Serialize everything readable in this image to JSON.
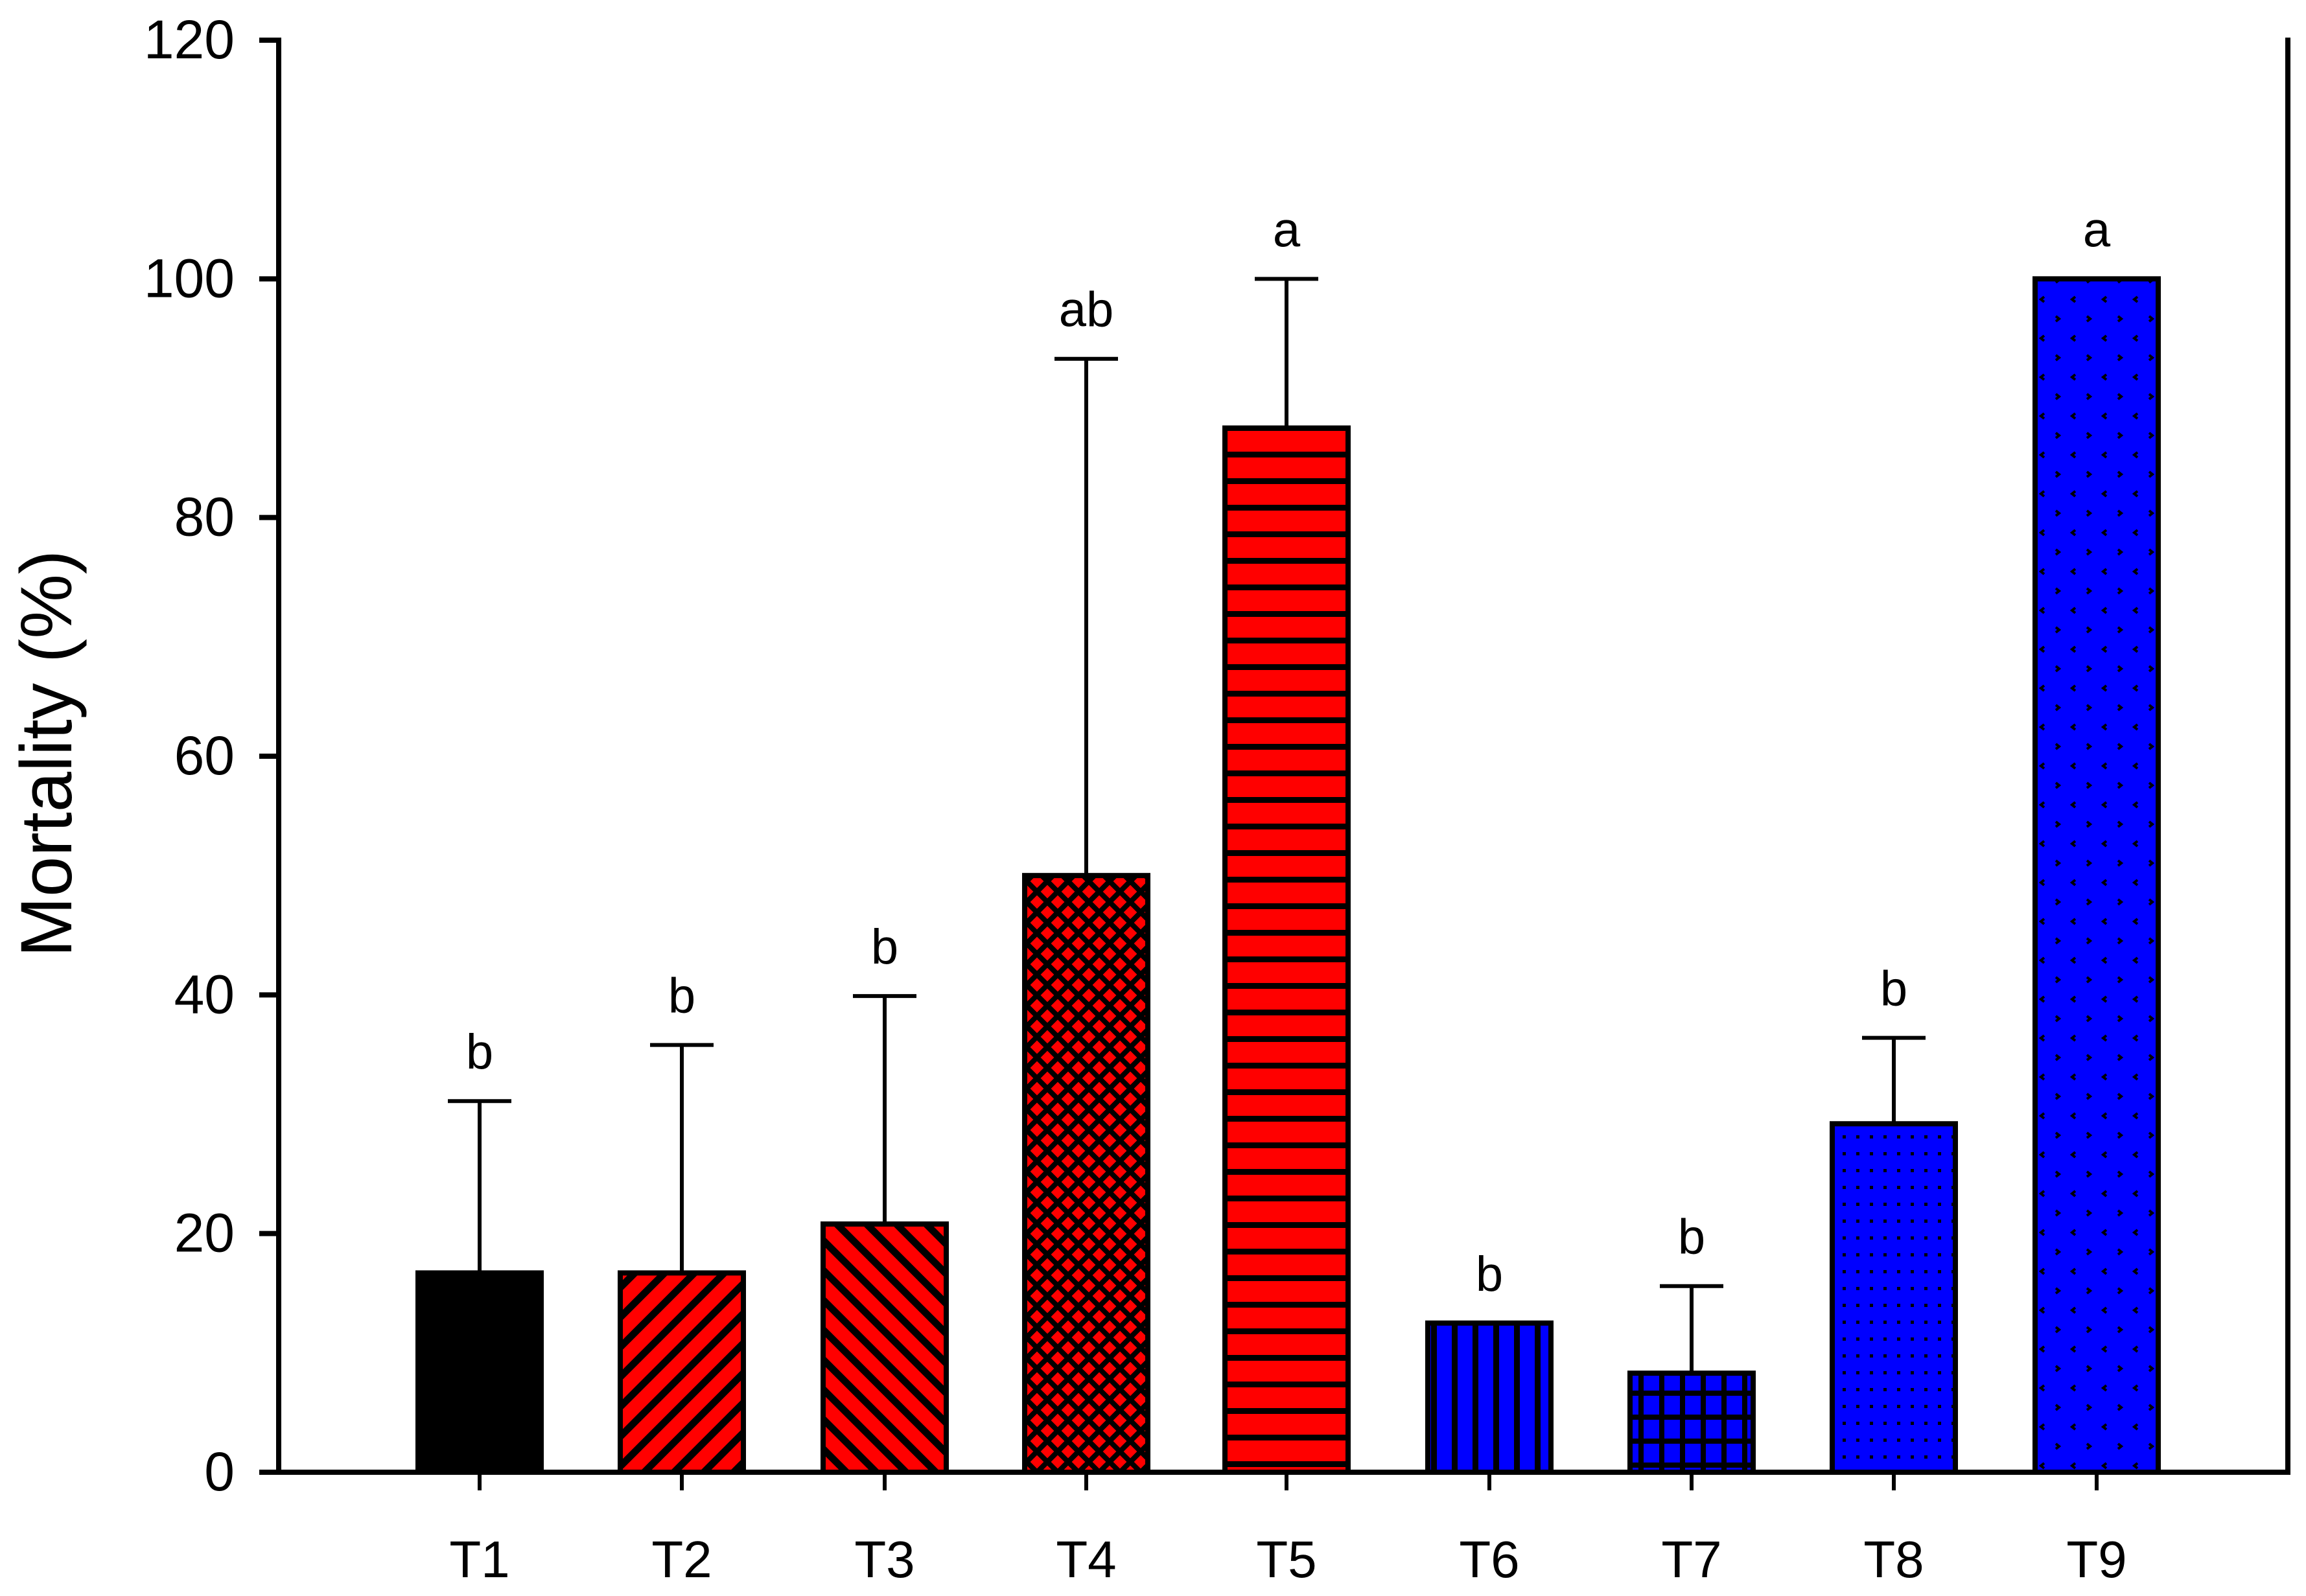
{
  "chart_data": {
    "type": "bar",
    "title": "",
    "xlabel": "",
    "ylabel": "Mortality (%)",
    "ylim": [
      0,
      120
    ],
    "yticks": [
      0,
      20,
      40,
      60,
      80,
      100,
      120
    ],
    "grid": false,
    "legend": null,
    "categories": [
      "T1",
      "T2",
      "T3",
      "T4",
      "T5",
      "T6",
      "T7",
      "T8",
      "T9"
    ],
    "values": [
      16.7,
      16.7,
      20.8,
      50.0,
      87.5,
      12.5,
      8.3,
      29.2,
      100.0
    ],
    "error_upper": [
      31.1,
      35.8,
      39.9,
      93.3,
      100.0,
      null,
      15.6,
      36.4,
      null
    ],
    "significance_letters": [
      "b",
      "b",
      "b",
      "ab",
      "a",
      "b",
      "b",
      "b",
      "a"
    ],
    "bar_styles": [
      {
        "fill": "#000000",
        "pattern": "solid"
      },
      {
        "fill": "#ff0000",
        "pattern": "diagonal-forward"
      },
      {
        "fill": "#ff0000",
        "pattern": "diagonal-backward"
      },
      {
        "fill": "#ff0000",
        "pattern": "crosshatch-diagonal"
      },
      {
        "fill": "#ff0000",
        "pattern": "horizontal-lines"
      },
      {
        "fill": "#0000ff",
        "pattern": "vertical-lines"
      },
      {
        "fill": "#0000ff",
        "pattern": "grid"
      },
      {
        "fill": "#0000ff",
        "pattern": "dots"
      },
      {
        "fill": "#0000ff",
        "pattern": "chevrons"
      }
    ]
  },
  "colors": {
    "red": "#ff0000",
    "blue": "#0000ff",
    "black": "#000000"
  }
}
